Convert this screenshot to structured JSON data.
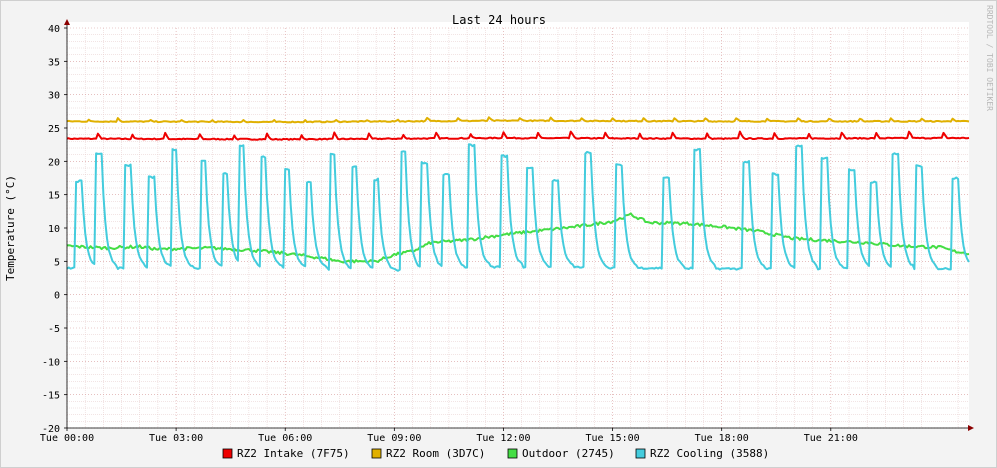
{
  "chart_data": {
    "type": "line",
    "title": "Last 24 hours",
    "ylabel": "Temperature (°C)",
    "watermark": "RRDTOOL / TOBI OETIKER",
    "ylim": [
      -20,
      40
    ],
    "yticks": [
      40,
      35,
      30,
      25,
      20,
      15,
      10,
      5,
      0,
      -5,
      -10,
      -15,
      -20
    ],
    "xlim_hours": [
      0,
      24.8
    ],
    "xticks": [
      {
        "label": "Tue 00:00",
        "hour": 0
      },
      {
        "label": "Tue 03:00",
        "hour": 3
      },
      {
        "label": "Tue 06:00",
        "hour": 6
      },
      {
        "label": "Tue 09:00",
        "hour": 9
      },
      {
        "label": "Tue 12:00",
        "hour": 12
      },
      {
        "label": "Tue 15:00",
        "hour": 15
      },
      {
        "label": "Tue 18:00",
        "hour": 18
      },
      {
        "label": "Tue 21:00",
        "hour": 21
      }
    ],
    "grid": true,
    "legend_position": "bottom",
    "cooling_spike_hours": [
      0.3,
      0.85,
      1.65,
      2.3,
      2.9,
      3.7,
      4.3,
      4.75,
      5.35,
      6.0,
      6.6,
      7.25,
      7.85,
      8.45,
      9.2,
      9.8,
      10.4,
      11.1,
      12.0,
      12.7,
      13.4,
      14.3,
      15.15,
      16.45,
      17.3,
      18.65,
      19.45,
      20.1,
      20.8,
      21.55,
      22.15,
      22.75,
      23.4,
      24.4
    ],
    "series": [
      {
        "name": "RZ2 Intake (7F75)",
        "color": "#ee0000",
        "points": [
          [
            0,
            23.4
          ],
          [
            6,
            23.3
          ],
          [
            12,
            23.5
          ],
          [
            18,
            23.4
          ],
          [
            24.8,
            23.5
          ]
        ]
      },
      {
        "name": "RZ2 Room (3D7C)",
        "color": "#e0b000",
        "points": [
          [
            0,
            26.0
          ],
          [
            6,
            25.9
          ],
          [
            12,
            26.1
          ],
          [
            18,
            26.0
          ],
          [
            24.8,
            26.0
          ]
        ]
      },
      {
        "name": "Outdoor (2745)",
        "color": "#44dd44",
        "points": [
          [
            0,
            7.3
          ],
          [
            1,
            7.0
          ],
          [
            2,
            7.2
          ],
          [
            2.5,
            6.8
          ],
          [
            3,
            6.9
          ],
          [
            4,
            7.0
          ],
          [
            5,
            6.7
          ],
          [
            6,
            6.2
          ],
          [
            7,
            5.5
          ],
          [
            7.5,
            5.0
          ],
          [
            8.5,
            5.0
          ],
          [
            9,
            6.0
          ],
          [
            9.5,
            6.5
          ],
          [
            10,
            7.8
          ],
          [
            11,
            8.2
          ],
          [
            12,
            9.0
          ],
          [
            13,
            9.6
          ],
          [
            14,
            10.2
          ],
          [
            15,
            11.0
          ],
          [
            15.5,
            12.0
          ],
          [
            16,
            10.8
          ],
          [
            17,
            10.7
          ],
          [
            18,
            10.2
          ],
          [
            19,
            9.5
          ],
          [
            20,
            8.4
          ],
          [
            21,
            8.1
          ],
          [
            22,
            7.8
          ],
          [
            23,
            7.3
          ],
          [
            24,
            7.1
          ],
          [
            24.4,
            6.5
          ],
          [
            24.8,
            6.2
          ]
        ]
      },
      {
        "name": "RZ2 Cooling (3588)",
        "color": "#44ccdd",
        "points": [
          [
            0,
            4.0
          ],
          [
            6,
            4.0
          ],
          [
            9,
            3.6
          ],
          [
            12,
            4.2
          ],
          [
            18,
            3.9
          ],
          [
            24.8,
            3.9
          ]
        ]
      }
    ]
  }
}
